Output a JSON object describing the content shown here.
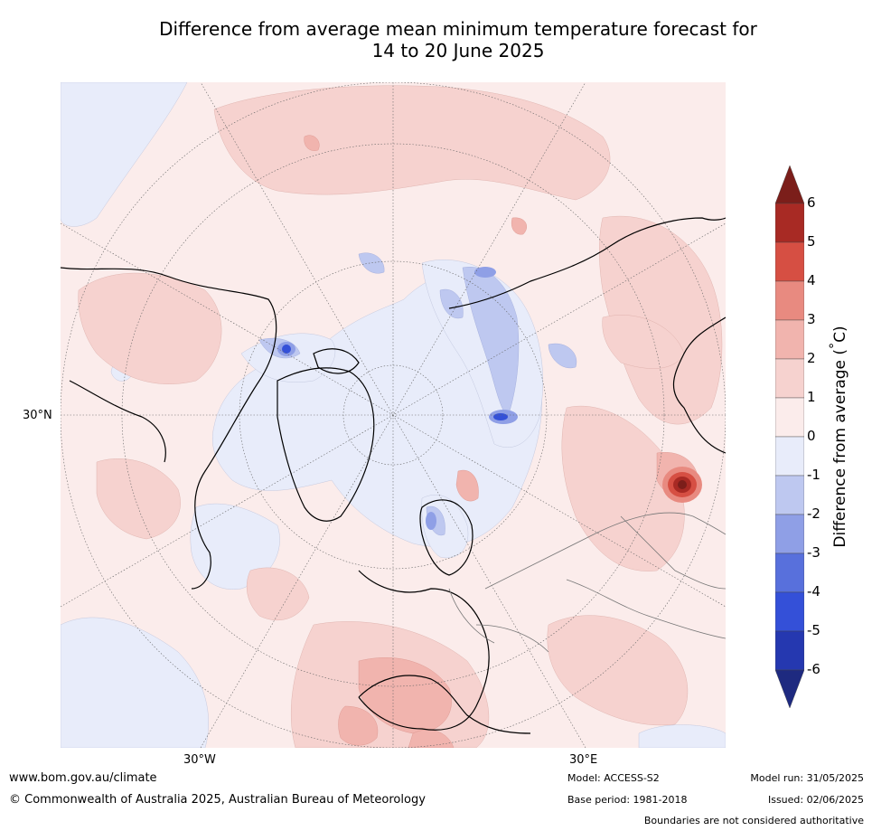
{
  "title": {
    "line1": "Difference from average mean minimum temperature forecast for",
    "line2": "14 to 20 June 2025"
  },
  "map": {
    "projection": "north-polar-stereographic",
    "lat_label": "30°N",
    "lon_labels": {
      "left": "30°W",
      "right": "30°E"
    }
  },
  "legend": {
    "label": "Difference from average (°C)",
    "label_text": "Difference from average (",
    "label_degree": "°",
    "label_unit": "C)",
    "ticks": [
      "6",
      "5",
      "4",
      "3",
      "2",
      "1",
      "0",
      "-1",
      "-2",
      "-3",
      "-4",
      "-5",
      "-6"
    ],
    "bands": [
      {
        "range": "> 6",
        "color": "#7b1e1a"
      },
      {
        "range": "5 to 6",
        "color": "#a82a24"
      },
      {
        "range": "4 to 5",
        "color": "#d64f43"
      },
      {
        "range": "3 to 4",
        "color": "#e88a80"
      },
      {
        "range": "2 to 3",
        "color": "#f1b4ae"
      },
      {
        "range": "1 to 2",
        "color": "#f6d2cf"
      },
      {
        "range": "0 to 1",
        "color": "#fbeceb"
      },
      {
        "range": "-1 to 0",
        "color": "#e8ecfa"
      },
      {
        "range": "-2 to -1",
        "color": "#bec8f0"
      },
      {
        "range": "-3 to -2",
        "color": "#8f9fe6"
      },
      {
        "range": "-4 to -3",
        "color": "#5870dc"
      },
      {
        "range": "-5 to -4",
        "color": "#3450d8"
      },
      {
        "range": "-6 to -5",
        "color": "#2538b0"
      },
      {
        "range": "< -6",
        "color": "#1e2a80"
      }
    ]
  },
  "footer": {
    "website": "www.bom.gov.au/climate",
    "copyright": "© Commonwealth of Australia 2025, Australian Bureau of Meteorology",
    "model": "Model: ACCESS-S2",
    "base_period": "Base period: 1981-2018",
    "model_run": "Model run: 31/05/2025",
    "issued": "Issued: 02/06/2025",
    "disclaimer": "Boundaries are not considered authoritative"
  }
}
